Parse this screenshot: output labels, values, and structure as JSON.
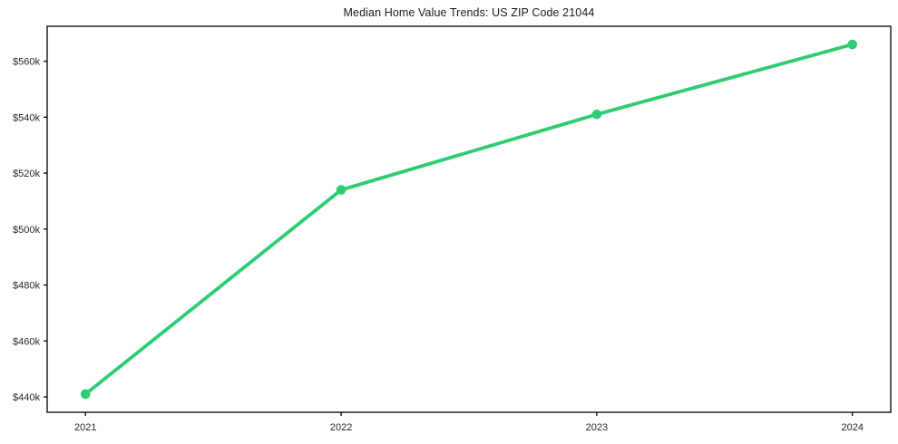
{
  "chart_data": {
    "type": "line",
    "title": "Median Home Value Trends: US ZIP Code 21044",
    "x": [
      2021,
      2022,
      2023,
      2024
    ],
    "xtick_labels": [
      "2021",
      "2022",
      "2023",
      "2024"
    ],
    "series": [
      {
        "name": "median-home-value",
        "values": [
          441,
          514,
          541,
          566
        ],
        "unit": "$k",
        "color": "#2ecc71"
      }
    ],
    "yticks": [
      440,
      460,
      480,
      500,
      520,
      540,
      560
    ],
    "ytick_labels": [
      "$440k",
      "$460k",
      "$480k",
      "$500k",
      "$520k",
      "$540k",
      "$560k"
    ],
    "xlim": [
      2020.85,
      2024.15
    ],
    "ylim": [
      434.5,
      572.5
    ],
    "grid": false,
    "legend": "none",
    "frame_color": "#000000",
    "background_color": "#ffffff"
  }
}
